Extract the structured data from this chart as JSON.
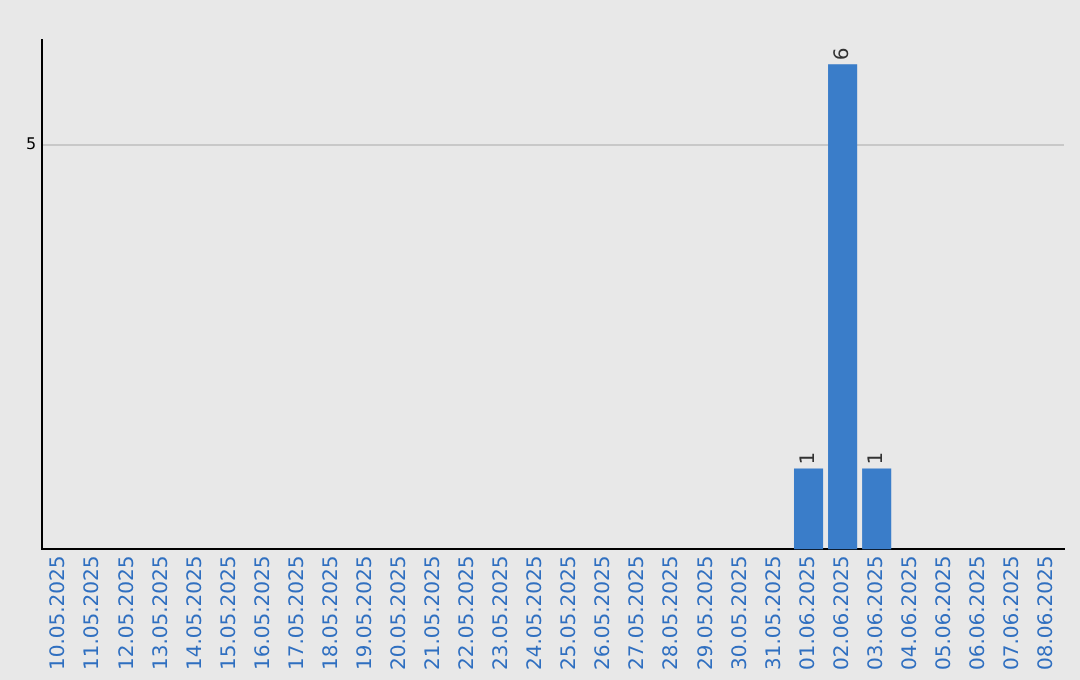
{
  "chart_data": {
    "type": "bar",
    "categories": [
      "10.05.2025",
      "11.05.2025",
      "12.05.2025",
      "13.05.2025",
      "14.05.2025",
      "15.05.2025",
      "16.05.2025",
      "17.05.2025",
      "18.05.2025",
      "19.05.2025",
      "20.05.2025",
      "21.05.2025",
      "22.05.2025",
      "23.05.2025",
      "24.05.2025",
      "25.05.2025",
      "26.05.2025",
      "27.05.2025",
      "28.05.2025",
      "29.05.2025",
      "30.05.2025",
      "31.05.2025",
      "01.06.2025",
      "02.06.2025",
      "03.06.2025",
      "04.06.2025",
      "05.06.2025",
      "06.06.2025",
      "07.06.2025",
      "08.06.2025"
    ],
    "values": [
      null,
      null,
      null,
      null,
      null,
      null,
      null,
      null,
      null,
      null,
      null,
      null,
      null,
      null,
      null,
      null,
      null,
      null,
      null,
      null,
      null,
      null,
      1,
      6,
      1,
      null,
      null,
      null,
      null,
      null
    ],
    "data_labels": true,
    "color": "#3a7dc9",
    "ylim": [
      0,
      6.3
    ],
    "yticks": [
      5
    ],
    "grid": "y",
    "legend": false
  }
}
